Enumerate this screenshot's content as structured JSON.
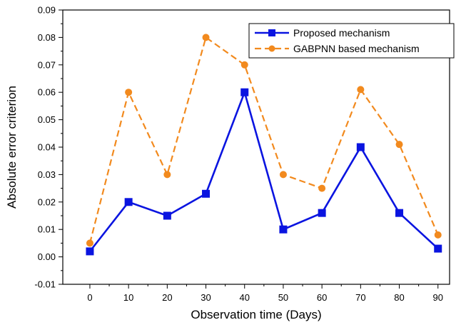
{
  "chart_data": {
    "type": "line",
    "xlabel": "Observation time (Days)",
    "ylabel": "Absolute error criterion",
    "xlim": [
      -7,
      93
    ],
    "ylim": [
      -0.01,
      0.09
    ],
    "x_ticks": [
      "0",
      "10",
      "20",
      "30",
      "40",
      "50",
      "60",
      "70",
      "80",
      "90"
    ],
    "y_ticks": [
      "-0.01",
      "0.00",
      "0.01",
      "0.02",
      "0.03",
      "0.04",
      "0.05",
      "0.06",
      "0.07",
      "0.08",
      "0.09"
    ],
    "grid": false,
    "legend_position": "top-right",
    "x": [
      0,
      10,
      20,
      30,
      40,
      50,
      60,
      70,
      80,
      90
    ],
    "series": [
      {
        "name": "Proposed mechanism",
        "values": [
          0.002,
          0.02,
          0.015,
          0.023,
          0.06,
          0.01,
          0.016,
          0.04,
          0.016,
          0.003
        ],
        "color": "#0a14e0",
        "line_style": "solid",
        "marker": "square"
      },
      {
        "name": "GABPNN based mechanism",
        "values": [
          0.005,
          0.06,
          0.03,
          0.08,
          0.07,
          0.03,
          0.025,
          0.061,
          0.041,
          0.008
        ],
        "color": "#f28a1e",
        "line_style": "dashed",
        "marker": "circle"
      }
    ]
  }
}
